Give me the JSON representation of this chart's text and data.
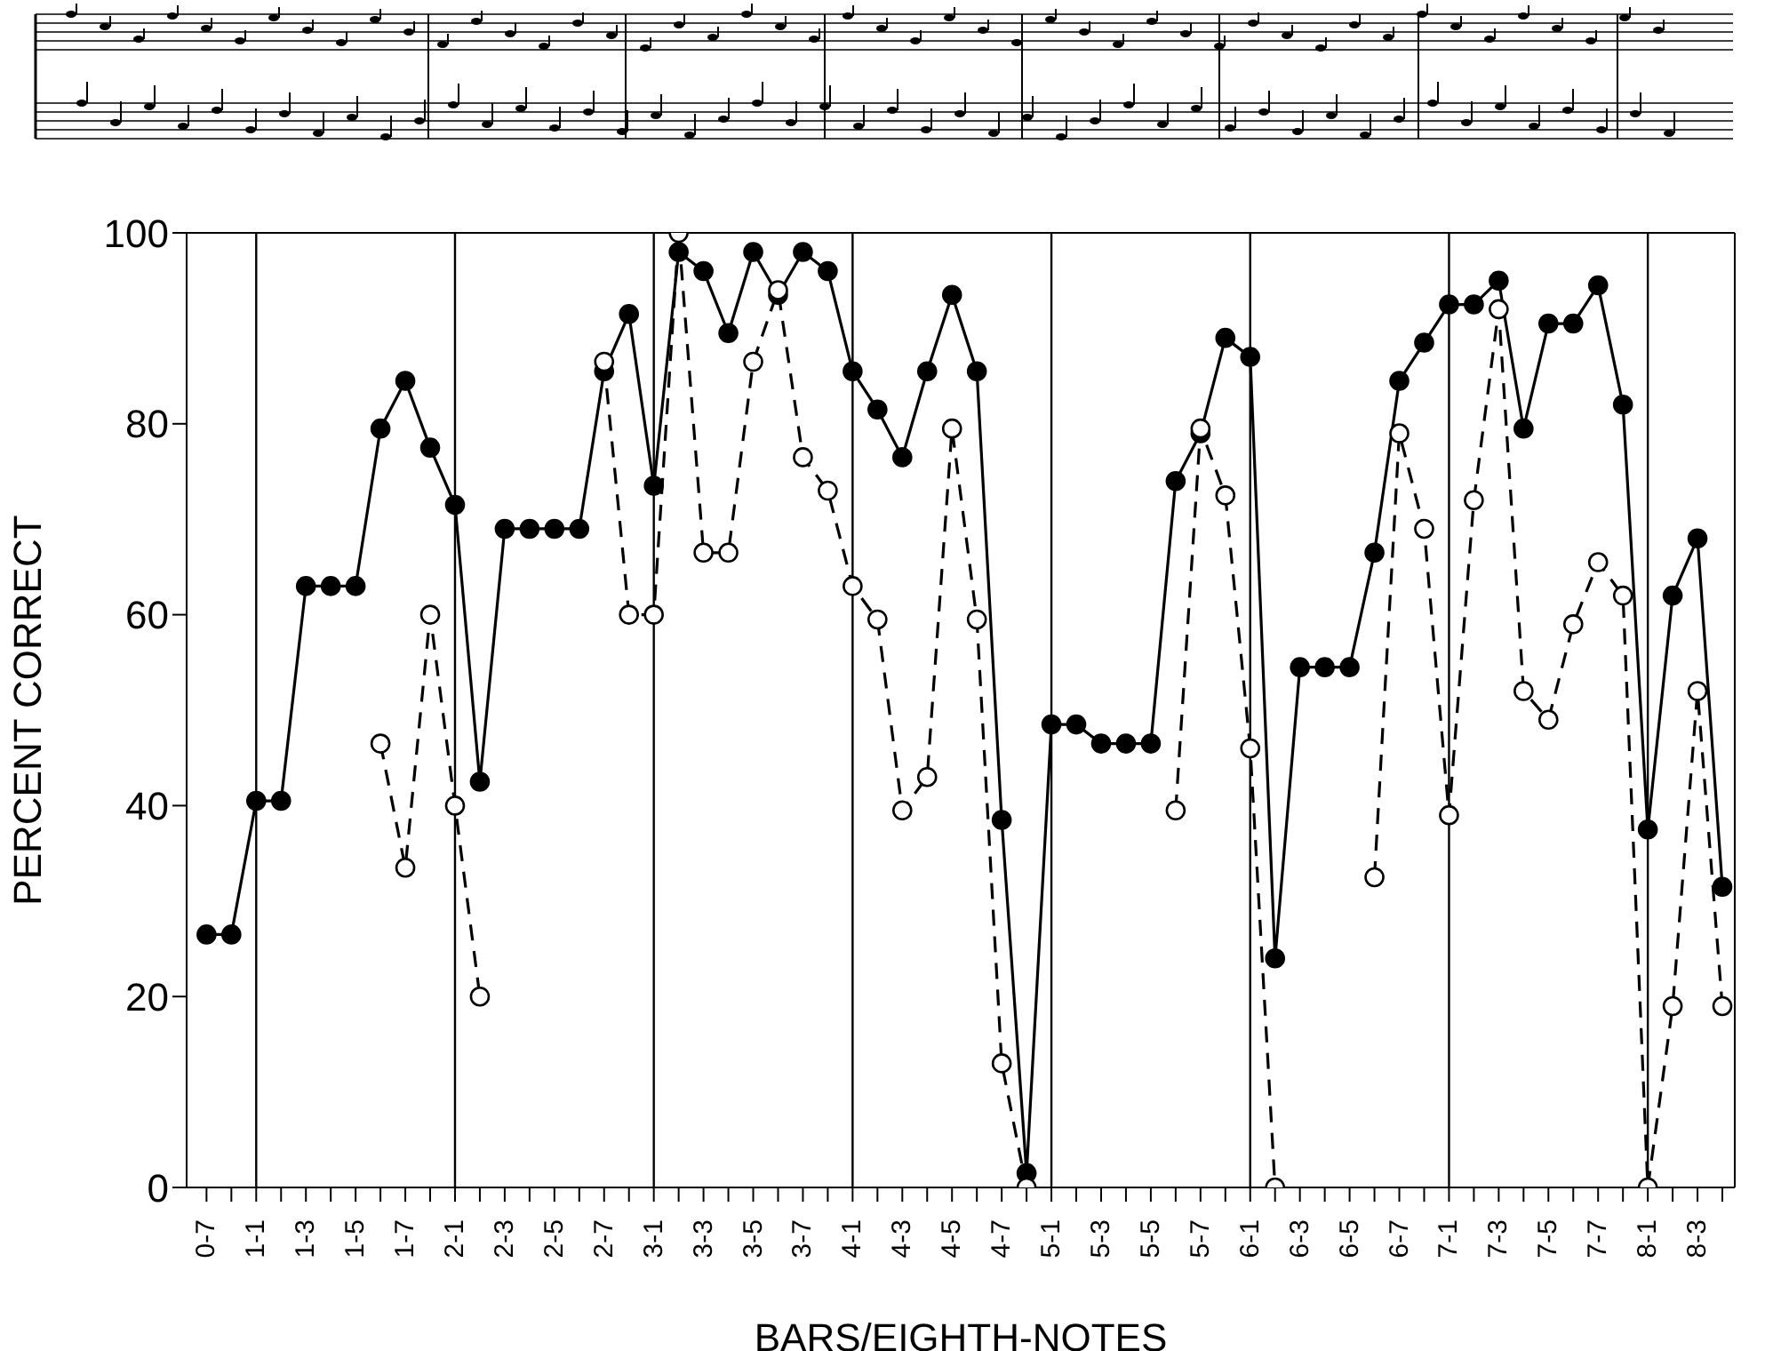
{
  "chart_data": {
    "type": "line",
    "xlabel": "BARS/EIGHTH-NOTES",
    "ylabel": "PERCENT CORRECT",
    "categories": [
      "0-7",
      null,
      "1-1",
      null,
      "1-3",
      null,
      "1-5",
      null,
      "1-7",
      null,
      "2-1",
      null,
      "2-3",
      null,
      "2-5",
      null,
      "2-7",
      null,
      "3-1",
      null,
      "3-3",
      null,
      "3-5",
      null,
      "3-7",
      null,
      "4-1",
      null,
      "4-3",
      null,
      "4-5",
      null,
      "4-7",
      null,
      "5-1",
      null,
      "5-3",
      null,
      "5-5",
      null,
      "5-7",
      null,
      "6-1",
      null,
      "6-3",
      null,
      "6-5",
      null,
      "6-7",
      null,
      "7-1",
      null,
      "7-3",
      null,
      "7-5",
      null,
      "7-7",
      null,
      "8-1",
      null,
      "8-3",
      null
    ],
    "series": [
      {
        "color": "#000000",
        "line_style": "solid",
        "values": [
          26.5,
          26.5,
          40.5,
          40.5,
          63,
          63,
          63,
          79.5,
          84.5,
          77.5,
          71.5,
          42.5,
          69,
          69,
          69,
          69,
          85.5,
          91.5,
          73.5,
          98,
          96,
          89.5,
          98,
          93.5,
          98,
          96,
          85.5,
          81.5,
          76.5,
          85.5,
          93.5,
          85.5,
          38.5,
          1.5,
          48.5,
          48.5,
          46.5,
          46.5,
          46.5,
          74,
          79,
          89,
          87,
          24,
          54.5,
          54.5,
          54.5,
          66.5,
          84.5,
          88.5,
          92.5,
          92.5,
          95,
          79.5,
          90.5,
          90.5,
          94.5,
          82,
          37.5,
          62,
          68,
          31.5
        ]
      },
      {
        "color": "#000000",
        "line_style": "dashed",
        "values": [
          null,
          null,
          null,
          null,
          null,
          null,
          null,
          46.5,
          33.5,
          60,
          40,
          20,
          null,
          null,
          null,
          null,
          86.5,
          60,
          60,
          100,
          66.5,
          66.5,
          86.5,
          94,
          76.5,
          73,
          63,
          59.5,
          39.5,
          43,
          79.5,
          59.5,
          13,
          0,
          null,
          null,
          null,
          null,
          null,
          39.5,
          79.5,
          72.5,
          46,
          0,
          null,
          null,
          null,
          32.5,
          79,
          69,
          39,
          72,
          92,
          52,
          49,
          59,
          65.5,
          62,
          0,
          19,
          52,
          19
        ]
      }
    ],
    "ylim": [
      0,
      100
    ],
    "yticks": [
      0,
      20,
      40,
      60,
      80,
      100
    ],
    "marker": "circle",
    "grid": false,
    "legend": false,
    "ref_lines": [
      {
        "axis": "x",
        "value": "1-1"
      },
      {
        "axis": "x",
        "value": "2-1"
      },
      {
        "axis": "x",
        "value": "3-1"
      },
      {
        "axis": "x",
        "value": "4-1"
      },
      {
        "axis": "x",
        "value": "5-1"
      },
      {
        "axis": "x",
        "value": "6-1"
      },
      {
        "axis": "x",
        "value": "7-1"
      },
      {
        "axis": "x",
        "value": "8-1"
      }
    ]
  }
}
